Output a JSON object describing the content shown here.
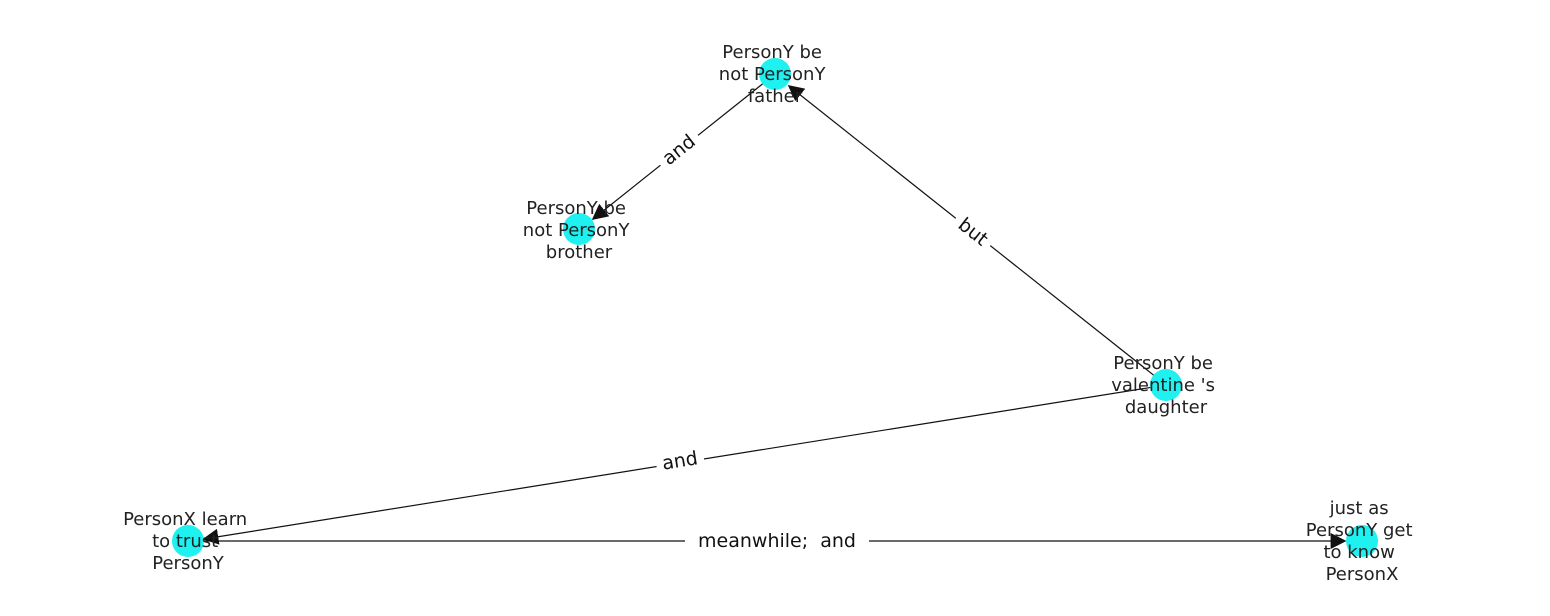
{
  "colors": {
    "node": "#1ff0f0",
    "edge": "#111111",
    "text": "#222222"
  },
  "nodes": [
    {
      "id": "father",
      "lines": [
        "PersonY be",
        "not PersonY",
        "father"
      ]
    },
    {
      "id": "brother",
      "lines": [
        "PersonY be",
        "not PersonY",
        "brother"
      ]
    },
    {
      "id": "daughter",
      "lines": [
        "PersonY be",
        "valentine 's",
        "daughter"
      ]
    },
    {
      "id": "trust",
      "lines": [
        "PersonX learn",
        "to trust",
        "PersonY"
      ]
    },
    {
      "id": "know",
      "lines": [
        "just as",
        "PersonY get",
        "to know",
        "PersonX"
      ]
    }
  ],
  "edges": [
    {
      "from": "father",
      "to": "brother",
      "label": "and"
    },
    {
      "from": "daughter",
      "to": "father",
      "label": "but"
    },
    {
      "from": "daughter",
      "to": "trust",
      "label": "and"
    },
    {
      "from": "trust",
      "to": "know",
      "label": "meanwhile;  and"
    }
  ]
}
